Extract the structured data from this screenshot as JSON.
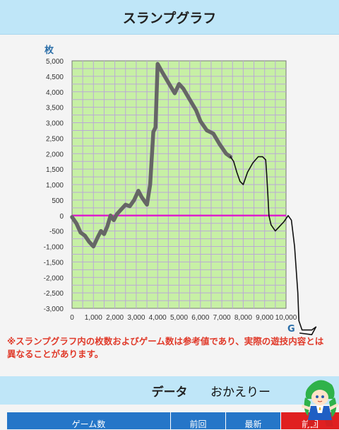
{
  "header": {
    "title": "スランプグラフ"
  },
  "chart_data": {
    "type": "line",
    "title": "スランプグラフ",
    "ylabel": "枚",
    "xlabel": "G",
    "xlim": [
      0,
      10000
    ],
    "ylim": [
      -3000,
      5000
    ],
    "x_ticks": [
      "0",
      "1,000",
      "2,000",
      "3,000",
      "4,000",
      "5,000",
      "6,000",
      "7,000",
      "8,000",
      "9,000",
      "10,000"
    ],
    "y_ticks": [
      "5,000",
      "4,500",
      "4,000",
      "3,500",
      "3,000",
      "2,500",
      "2,000",
      "1,500",
      "1,000",
      "500",
      "0",
      "-500",
      "-1,000",
      "-1,500",
      "-2,000",
      "-2,500",
      "-3,000"
    ],
    "grid": true,
    "zero_line_color": "#dd22cc",
    "series": [
      {
        "color": "#666666",
        "points": [
          [
            0,
            -50
          ],
          [
            200,
            -250
          ],
          [
            400,
            -550
          ],
          [
            600,
            -650
          ],
          [
            800,
            -850
          ],
          [
            1000,
            -1000
          ],
          [
            1200,
            -700
          ],
          [
            1350,
            -500
          ],
          [
            1500,
            -600
          ],
          [
            1650,
            -350
          ],
          [
            1800,
            0
          ],
          [
            1950,
            -150
          ],
          [
            2100,
            50
          ],
          [
            2300,
            200
          ],
          [
            2500,
            350
          ],
          [
            2700,
            300
          ],
          [
            2900,
            500
          ],
          [
            3100,
            800
          ],
          [
            3250,
            600
          ],
          [
            3400,
            450
          ],
          [
            3500,
            350
          ],
          [
            3650,
            1000
          ],
          [
            3800,
            2700
          ],
          [
            3900,
            2850
          ],
          [
            4000,
            4900
          ],
          [
            4200,
            4650
          ],
          [
            4500,
            4300
          ],
          [
            4800,
            3950
          ],
          [
            5000,
            4250
          ],
          [
            5200,
            4100
          ],
          [
            5500,
            3750
          ],
          [
            5800,
            3400
          ],
          [
            6000,
            3050
          ],
          [
            6300,
            2750
          ],
          [
            6600,
            2650
          ],
          [
            6900,
            2300
          ],
          [
            7200,
            2000
          ],
          [
            7400,
            1900
          ]
        ]
      }
    ]
  },
  "note": "※スランプグラフ内の枚数およびゲーム数は参考値であり、実際の遊技内容とは異なることがあります。",
  "data_section": {
    "title": "データ"
  },
  "table": {
    "headers": [
      "ゲーム数",
      "前回",
      "最新",
      "前回"
    ]
  },
  "overlay": {
    "handwritten_text": "おかえりー",
    "drawing_color": "#111111",
    "drawing_path": [
      [
        7400,
        1900
      ],
      [
        7550,
        1750
      ],
      [
        7700,
        1400
      ],
      [
        7850,
        1100
      ],
      [
        8000,
        1000
      ],
      [
        8200,
        1400
      ],
      [
        8450,
        1700
      ],
      [
        8700,
        1900
      ],
      [
        8900,
        1900
      ],
      [
        9050,
        1800
      ],
      [
        9100,
        1300
      ],
      [
        9150,
        700
      ],
      [
        9200,
        0
      ],
      [
        9300,
        -300
      ],
      [
        9500,
        -500
      ],
      [
        9700,
        -350
      ],
      [
        9900,
        -200
      ],
      [
        10100,
        0
      ],
      [
        10250,
        -150
      ],
      [
        10400,
        -1000
      ],
      [
        10550,
        -2500
      ],
      [
        10600,
        -3400
      ],
      [
        10750,
        -3700
      ],
      [
        11200,
        -3700
      ],
      [
        11400,
        -3600
      ],
      [
        11200,
        -3850
      ],
      [
        10650,
        -3800
      ]
    ]
  }
}
